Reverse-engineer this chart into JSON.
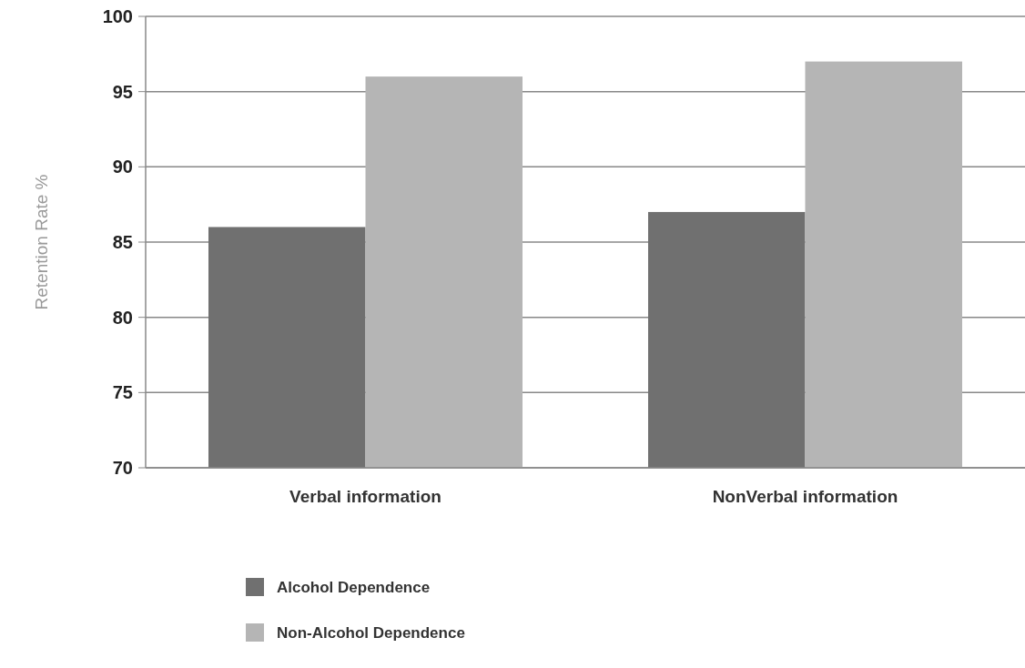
{
  "chart_data": {
    "type": "bar",
    "ylabel": "Retention Rate %",
    "categories": [
      "Verbal information",
      "NonVerbal information"
    ],
    "series": [
      {
        "name": "Alcohol Dependence",
        "color": "#707070",
        "values": [
          86,
          87
        ]
      },
      {
        "name": "Non-Alcohol Dependence",
        "color": "#b5b5b5",
        "values": [
          96,
          97
        ]
      }
    ],
    "ylim": [
      70,
      100
    ],
    "yticks": [
      70,
      75,
      80,
      85,
      90,
      95,
      100
    ],
    "grid": "y",
    "legend": "bottom"
  }
}
